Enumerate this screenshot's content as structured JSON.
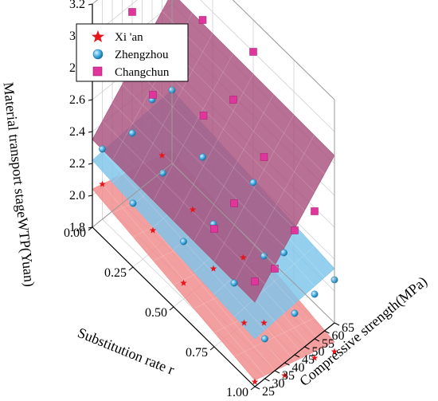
{
  "chart_data": {
    "type": "scatter",
    "subtype": "3d-scatter-with-fitted-surfaces",
    "title": "",
    "axes": {
      "x": {
        "label": "Substitution rate r",
        "range": [
          0,
          1
        ],
        "ticks": [
          "0.00",
          "0.25",
          "0.50",
          "0.75",
          "1.00"
        ]
      },
      "y": {
        "label": "Compressive strength(MPa)",
        "range": [
          25,
          65
        ],
        "ticks": [
          "25",
          "30",
          "35",
          "40",
          "45",
          "50",
          "55",
          "60",
          "65"
        ]
      },
      "z": {
        "label": "Material transport stageWTP(Yuan)",
        "range": [
          1.8,
          3.2
        ],
        "ticks": [
          "1.8",
          "2.0",
          "2.2",
          "2.4",
          "2.6",
          "2.8",
          "3.0",
          "3.2"
        ]
      }
    },
    "grid": true,
    "legend_position": "top-left",
    "series": [
      {
        "name": "Xi 'an",
        "marker": "star",
        "color": "#e8141c",
        "surface": {
          "color": "#f08a8a",
          "plane": [
            2.04,
            -0.2,
            -0.004
          ]
        },
        "points": [
          {
            "r": 0.0,
            "s": 30,
            "w": 2.02
          },
          {
            "r": 0.0,
            "s": 60,
            "w": 1.9
          },
          {
            "r": 0.25,
            "s": 35,
            "w": 1.93
          },
          {
            "r": 0.25,
            "s": 55,
            "w": 1.86
          },
          {
            "r": 0.5,
            "s": 30,
            "w": 1.9
          },
          {
            "r": 0.5,
            "s": 45,
            "w": 1.84
          },
          {
            "r": 0.5,
            "s": 60,
            "w": 1.76
          },
          {
            "r": 0.75,
            "s": 40,
            "w": 1.8
          },
          {
            "r": 0.75,
            "s": 50,
            "w": 1.7
          },
          {
            "r": 1.0,
            "s": 25,
            "w": 1.83
          },
          {
            "r": 1.0,
            "s": 40,
            "w": 1.72
          },
          {
            "r": 1.0,
            "s": 55,
            "w": 1.68
          },
          {
            "r": 1.0,
            "s": 65,
            "w": 1.62
          }
        ]
      },
      {
        "name": "Zhengzhou",
        "marker": "sphere",
        "color": "#3aa6dd",
        "surface": {
          "color": "#7ec4ea",
          "plane": [
            2.22,
            -0.12,
            0.001
          ]
        },
        "points": [
          {
            "r": 0.0,
            "s": 30,
            "w": 2.24
          },
          {
            "r": 0.0,
            "s": 45,
            "w": 2.19
          },
          {
            "r": 0.0,
            "s": 55,
            "w": 2.3
          },
          {
            "r": 0.0,
            "s": 65,
            "w": 2.26
          },
          {
            "r": 0.25,
            "s": 25,
            "w": 2.2
          },
          {
            "r": 0.25,
            "s": 40,
            "w": 2.24
          },
          {
            "r": 0.25,
            "s": 60,
            "w": 2.14
          },
          {
            "r": 0.5,
            "s": 30,
            "w": 2.16
          },
          {
            "r": 0.5,
            "s": 45,
            "w": 2.12
          },
          {
            "r": 0.5,
            "s": 65,
            "w": 2.18
          },
          {
            "r": 0.75,
            "s": 35,
            "w": 2.1
          },
          {
            "r": 0.75,
            "s": 50,
            "w": 2.12
          },
          {
            "r": 0.75,
            "s": 60,
            "w": 2.04
          },
          {
            "r": 1.0,
            "s": 30,
            "w": 2.05
          },
          {
            "r": 1.0,
            "s": 45,
            "w": 2.06
          },
          {
            "r": 1.0,
            "s": 55,
            "w": 2.08
          },
          {
            "r": 1.0,
            "s": 65,
            "w": 2.07
          }
        ]
      },
      {
        "name": "Changchun",
        "marker": "cube",
        "color": "#e0369c",
        "surface": {
          "color": "#a8507c",
          "plane": [
            2.35,
            -0.02,
            0.013
          ]
        },
        "points": [
          {
            "r": 0.0,
            "s": 30,
            "w": 2.7
          },
          {
            "r": 0.0,
            "s": 45,
            "w": 2.95
          },
          {
            "r": 0.0,
            "s": 55,
            "w": 2.96
          },
          {
            "r": 0.0,
            "s": 65,
            "w": 3.0
          },
          {
            "r": 0.25,
            "s": 35,
            "w": 2.78
          },
          {
            "r": 0.25,
            "s": 45,
            "w": 2.8
          },
          {
            "r": 0.25,
            "s": 60,
            "w": 3.0
          },
          {
            "r": 0.5,
            "s": 40,
            "w": 2.85
          },
          {
            "r": 0.5,
            "s": 55,
            "w": 2.8
          },
          {
            "r": 0.5,
            "s": 65,
            "w": 3.0
          },
          {
            "r": 0.75,
            "s": 25,
            "w": 2.54
          },
          {
            "r": 0.75,
            "s": 35,
            "w": 2.6
          },
          {
            "r": 0.75,
            "s": 50,
            "w": 2.74
          },
          {
            "r": 1.0,
            "s": 25,
            "w": 2.46
          },
          {
            "r": 1.0,
            "s": 35,
            "w": 2.44
          },
          {
            "r": 1.0,
            "s": 45,
            "w": 2.58
          },
          {
            "r": 1.0,
            "s": 55,
            "w": 2.6
          }
        ]
      }
    ]
  }
}
